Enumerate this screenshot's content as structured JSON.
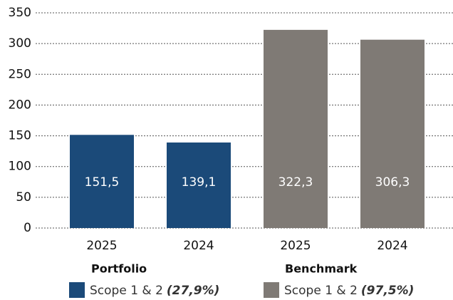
{
  "chart_data": {
    "type": "bar",
    "categories": [
      "2025",
      "2024",
      "2025",
      "2024"
    ],
    "groups": [
      "Portfolio",
      "Benchmark"
    ],
    "series": [
      {
        "name": "Scope 1 & 2",
        "share": "(27,9%)",
        "color": "#1b4a79",
        "values": [
          151.5,
          139.1,
          null,
          null
        ],
        "value_labels": [
          "151,5",
          "139,1",
          null,
          null
        ]
      },
      {
        "name": "Scope 1 & 2",
        "share": "(97,5%)",
        "color": "#7f7a75",
        "values": [
          null,
          null,
          322.3,
          306.3
        ],
        "value_labels": [
          null,
          null,
          "322,3",
          "306,3"
        ]
      }
    ],
    "ylim": [
      0,
      350
    ],
    "yticks": [
      0,
      50,
      100,
      150,
      200,
      250,
      300,
      350
    ],
    "grid": true
  }
}
